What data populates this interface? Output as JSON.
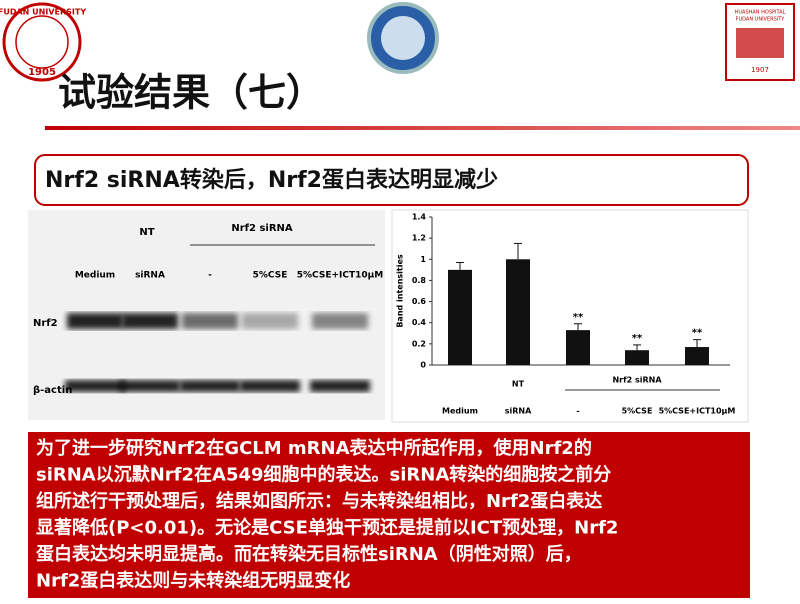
{
  "header": {
    "title": "试验结果（七）"
  },
  "logos": {
    "left": {
      "name": "FUDAN UNIVERSITY",
      "year": "1905"
    },
    "right": {
      "name": "HUASHAN HOSPITAL",
      "sub": "FUDAN UNIVERSITY",
      "year": "1907"
    }
  },
  "banner": "Nrf2 siRNA转染后，Nrf2蛋白表达明显减少",
  "blot": {
    "group_nt": "NT",
    "group_sirna": "Nrf2 siRNA",
    "lanes": [
      "Medium",
      "siRNA",
      "-",
      "5%CSE",
      "5%CSE+ICT10μM"
    ],
    "rows": [
      "Nrf2",
      "β-actin"
    ]
  },
  "chart_data": {
    "type": "bar",
    "y_label": "Band intensities",
    "categories": [
      "Medium",
      "siRNA",
      "-",
      "5%CSE",
      "5%CSE+ICT10μM"
    ],
    "values": [
      0.9,
      1.0,
      0.33,
      0.14,
      0.17
    ],
    "errors": [
      0.07,
      0.15,
      0.06,
      0.05,
      0.07
    ],
    "significance": [
      null,
      null,
      "**",
      "**",
      "**"
    ],
    "groups": [
      "NT",
      "Nrf2 siRNA"
    ],
    "color": "#111111",
    "ylim": [
      0,
      1.4
    ],
    "yticks": [
      0,
      0.2,
      0.4,
      0.6,
      0.8,
      1,
      1.2,
      1.4
    ]
  },
  "body": {
    "lines": [
      "为了进一步研究Nrf2在GCLM mRNA表达中所起作用，使用Nrf2的",
      "siRNA以沉默Nrf2在A549细胞中的表达。siRNA转染的细胞按之前分",
      "组所述行干预处理后，结果如图所示：与未转染组相比，Nrf2蛋白表达",
      "显著降低(P<0.01)。无论是CSE单独干预还是提前以ICT预处理，Nrf2",
      "蛋白表达均未明显提高。而在转染无目标性siRNA（阴性对照）后，",
      "Nrf2蛋白表达则与未转染组无明显变化"
    ]
  }
}
